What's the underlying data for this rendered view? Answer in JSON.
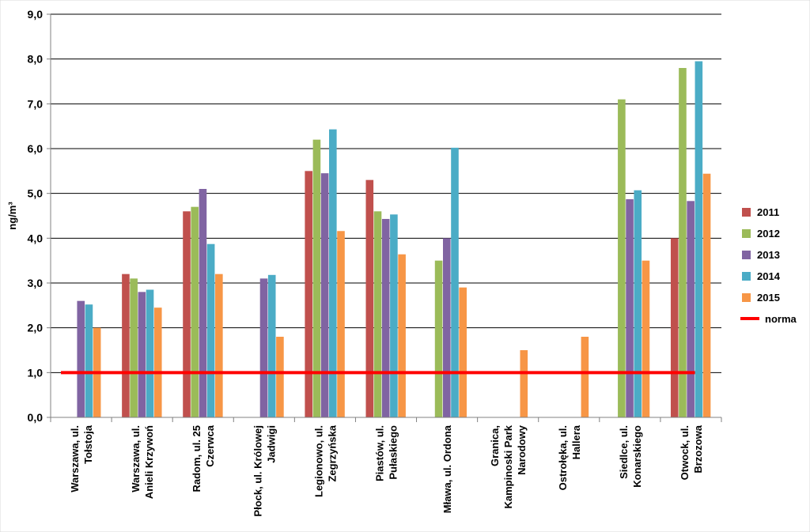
{
  "chart_data": {
    "type": "bar",
    "ylabel": "ng/m³",
    "ylim": [
      0,
      9
    ],
    "yticks": [
      "0,0",
      "1,0",
      "2,0",
      "3,0",
      "4,0",
      "5,0",
      "6,0",
      "7,0",
      "8,0",
      "9,0"
    ],
    "grid": true,
    "legend_position": "right",
    "categories": [
      [
        "Warszawa, ul.",
        "Tołstoja"
      ],
      [
        "Warszawa, ul.",
        "Anieli Krzywoń"
      ],
      [
        "Radom, ul. 25",
        "Czerwca"
      ],
      [
        "Płock, ul. Królowej",
        "Jadwigi"
      ],
      [
        "Legionowo, ul.",
        "Zegrzyńska"
      ],
      [
        "Piastów, ul.",
        "Pułaskiego"
      ],
      [
        "Mława, ul. Ordona"
      ],
      [
        "Granica,",
        "Kampinoski Park",
        "Narodowy"
      ],
      [
        "Ostrołęka, ul.",
        "Hallera"
      ],
      [
        "Siedlce, ul.",
        "Konarskiego"
      ],
      [
        "Otwock, ul.",
        "Brzozowa"
      ]
    ],
    "series": [
      {
        "name": "2011",
        "color": "#C0504D",
        "values": [
          null,
          3.2,
          4.6,
          null,
          5.5,
          5.3,
          null,
          null,
          null,
          null,
          4.0
        ]
      },
      {
        "name": "2012",
        "color": "#9BBB59",
        "values": [
          null,
          3.1,
          4.7,
          null,
          6.2,
          4.6,
          3.5,
          null,
          null,
          7.1,
          7.8
        ]
      },
      {
        "name": "2013",
        "color": "#8064A2",
        "values": [
          2.6,
          2.8,
          5.1,
          3.1,
          5.45,
          4.43,
          4.0,
          null,
          null,
          4.87,
          4.83
        ]
      },
      {
        "name": "2014",
        "color": "#4BACC6",
        "values": [
          2.52,
          2.85,
          3.87,
          3.18,
          6.43,
          4.53,
          6.02,
          null,
          null,
          5.07,
          7.95
        ]
      },
      {
        "name": "2015",
        "color": "#F79646",
        "values": [
          2.0,
          2.45,
          3.2,
          1.8,
          4.16,
          3.64,
          2.9,
          1.5,
          1.8,
          3.5,
          5.44
        ]
      }
    ],
    "reference_line": {
      "name": "norma",
      "value": 1.0,
      "color": "#FF0000"
    }
  }
}
